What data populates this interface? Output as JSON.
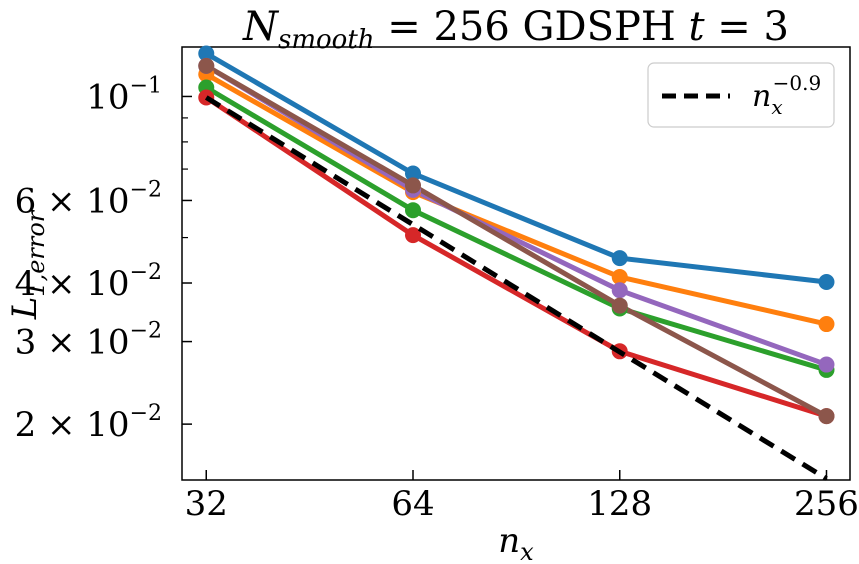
{
  "chart_data": {
    "type": "line",
    "title": {
      "prefix": "N",
      "sub": "smooth",
      "middle": " = 256 GDSPH ",
      "t": "t",
      "suffix": " = 3"
    },
    "xlabel": {
      "base": "n",
      "sub": "x"
    },
    "ylabel": {
      "base": "L",
      "sub": "1,error"
    },
    "xscale": "log2",
    "yscale": "log10",
    "x": [
      32,
      64,
      128,
      256
    ],
    "xlim": [
      29.5,
      277
    ],
    "ylim": [
      0.0152,
      0.1275
    ],
    "xticks": [
      "32",
      "64",
      "128",
      "256"
    ],
    "yticks": [
      {
        "value": 0.1,
        "mant": "",
        "exp": "−1"
      },
      {
        "value": 0.06,
        "mant": "6",
        "exp": "−2"
      },
      {
        "value": 0.04,
        "mant": "4",
        "exp": "−2"
      },
      {
        "value": 0.03,
        "mant": "3",
        "exp": "−2"
      },
      {
        "value": 0.02,
        "mant": "2",
        "exp": "−2"
      }
    ],
    "minor_yticks": [
      0.09,
      0.08,
      0.07,
      0.05
    ],
    "series": [
      {
        "name": "blue",
        "color": "#1f77b4",
        "values": [
          0.1235,
          0.0685,
          0.0452,
          0.0402
        ]
      },
      {
        "name": "orange",
        "color": "#ff7f0e",
        "values": [
          0.1115,
          0.0625,
          0.0412,
          0.0327
        ]
      },
      {
        "name": "green",
        "color": "#2ca02c",
        "values": [
          0.1045,
          0.0572,
          0.0353,
          0.0261
        ]
      },
      {
        "name": "red",
        "color": "#d62728",
        "values": [
          0.0995,
          0.0506,
          0.0286,
          0.0208
        ]
      },
      {
        "name": "purple",
        "color": "#9467bd",
        "values": [
          0.1162,
          0.0632,
          0.0386,
          0.0268
        ]
      },
      {
        "name": "brown",
        "color": "#8c564b",
        "values": [
          0.1162,
          0.0646,
          0.0358,
          0.0208
        ]
      }
    ],
    "reference": {
      "label_base": "n",
      "label_sub": "x",
      "label_exp": "−0.9",
      "exponent": -0.9,
      "values": [
        0.0995,
        0.0533,
        0.0285,
        0.0153
      ],
      "color": "#000000"
    },
    "legend_position": "top-right",
    "grid": false
  }
}
